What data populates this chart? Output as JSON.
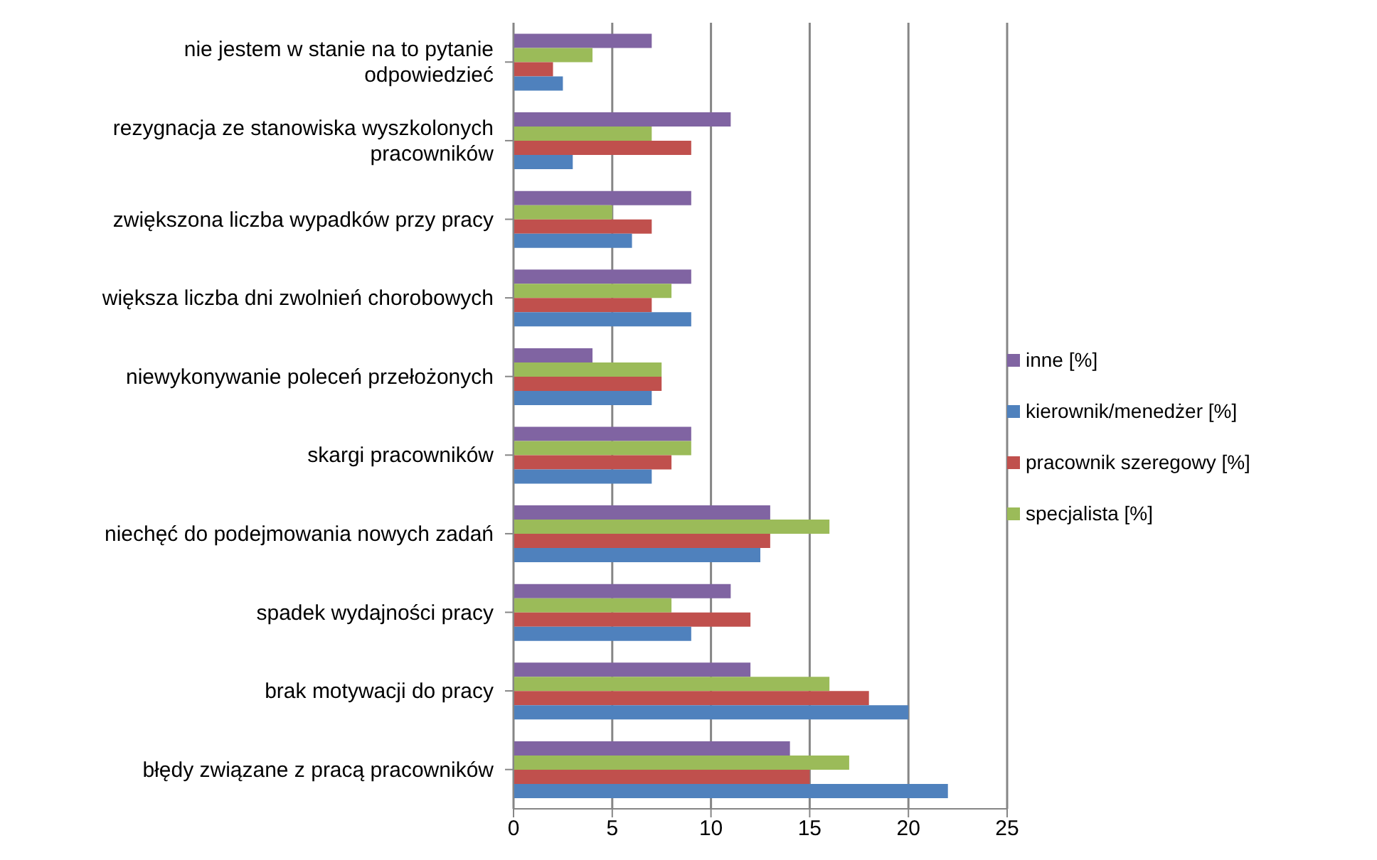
{
  "chart_data": {
    "type": "bar",
    "orientation": "horizontal",
    "categories": [
      "nie jestem w stanie na to pytanie odpowiedzieć",
      "rezygnacja ze stanowiska wyszkolonych pracowników",
      "zwiększona liczba wypadków przy pracy",
      "większa liczba dni zwolnień chorobowych",
      "niewykonywanie poleceń przełożonych",
      "skargi pracowników",
      "niechęć do podejmowania nowych zadań",
      "spadek wydajności pracy",
      "brak motywacji do pracy",
      "błędy związane z pracą pracowników"
    ],
    "series": [
      {
        "name": "inne [%]",
        "color": "#8064a2",
        "values": [
          7,
          11,
          9,
          9,
          4,
          9,
          13,
          11,
          12,
          14
        ]
      },
      {
        "name": "specjalista [%]",
        "color": "#9bbb59",
        "values": [
          4,
          7,
          5,
          8,
          7.5,
          9,
          16,
          8,
          16,
          17
        ]
      },
      {
        "name": "pracownik szeregowy [%]",
        "color": "#c0504d",
        "values": [
          2,
          9,
          7,
          7,
          7.5,
          8,
          13,
          12,
          18,
          15
        ]
      },
      {
        "name": "kierownik/menedżer [%]",
        "color": "#4f81bd",
        "values": [
          2.5,
          3,
          6,
          9,
          7,
          7,
          12.5,
          9,
          20,
          22
        ]
      }
    ],
    "xlim": [
      0,
      25
    ],
    "xticks": [
      0,
      5,
      10,
      15,
      20,
      25
    ],
    "grid": "x",
    "legend": "right"
  }
}
